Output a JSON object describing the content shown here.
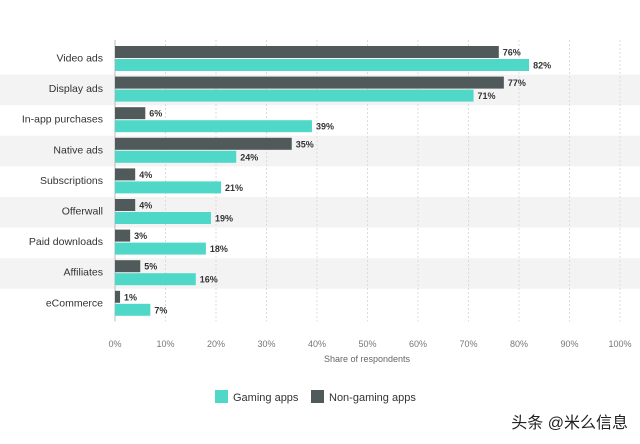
{
  "chart_data": {
    "type": "bar",
    "orientation": "horizontal",
    "categories": [
      "Video ads",
      "Display ads",
      "In-app purchases",
      "Native ads",
      "Subscriptions",
      "Offerwall",
      "Paid downloads",
      "Affiliates",
      "eCommerce"
    ],
    "series": [
      {
        "name": "Non-gaming apps",
        "color": "#505a5a",
        "values": [
          76,
          77,
          6,
          35,
          4,
          4,
          3,
          5,
          1
        ]
      },
      {
        "name": "Gaming apps",
        "color": "#4fd8c8",
        "values": [
          82,
          71,
          39,
          24,
          21,
          19,
          18,
          16,
          7
        ]
      }
    ],
    "xlabel": "Share of respondents",
    "x_ticks": [
      "0%",
      "10%",
      "20%",
      "30%",
      "40%",
      "50%",
      "60%",
      "70%",
      "80%",
      "90%",
      "100%"
    ],
    "xlim": [
      0,
      100
    ],
    "value_suffix": "%",
    "grid": true,
    "legend": {
      "placement": "bottom",
      "entries": [
        {
          "label": "Gaming apps",
          "color": "#4fd8c8"
        },
        {
          "label": "Non-gaming apps",
          "color": "#505a5a"
        }
      ]
    }
  },
  "watermark": "头条 @米么信息"
}
